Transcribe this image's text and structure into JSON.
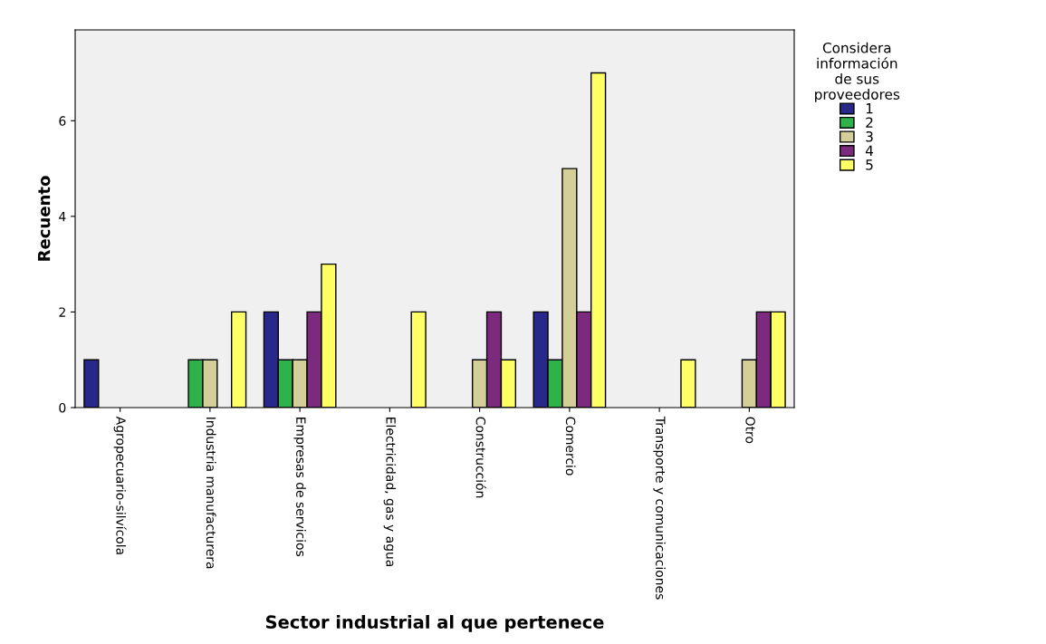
{
  "chart_data": {
    "type": "bar",
    "xlabel": "Sector industrial al que pertenece",
    "ylabel": "Recuento",
    "legend_title": "Considera\ninformación\nde sus\nproveedores",
    "categories": [
      "Agropecuario-silvícola",
      "Industria manufacturera",
      "Empresas de servicios",
      "Electricidad, gas y agua",
      "Construcción",
      "Comercio",
      "Transporte y comunicaciones",
      "Otro"
    ],
    "series": [
      {
        "name": "1",
        "color": "#28288a",
        "values": [
          1,
          null,
          2,
          null,
          null,
          2,
          null,
          null
        ]
      },
      {
        "name": "2",
        "color": "#2fb24a",
        "values": [
          null,
          1,
          1,
          null,
          null,
          1,
          null,
          null
        ]
      },
      {
        "name": "3",
        "color": "#d4cf98",
        "values": [
          null,
          1,
          1,
          null,
          1,
          5,
          null,
          1
        ]
      },
      {
        "name": "4",
        "color": "#7c2a7e",
        "values": [
          null,
          null,
          2,
          null,
          2,
          2,
          null,
          2
        ]
      },
      {
        "name": "5",
        "color": "#ffff66",
        "values": [
          null,
          2,
          3,
          2,
          1,
          7,
          1,
          2
        ]
      }
    ],
    "ylim": [
      0,
      7.9
    ],
    "yticks": [
      0,
      2,
      4,
      6
    ],
    "grid": false,
    "legend": "right"
  }
}
